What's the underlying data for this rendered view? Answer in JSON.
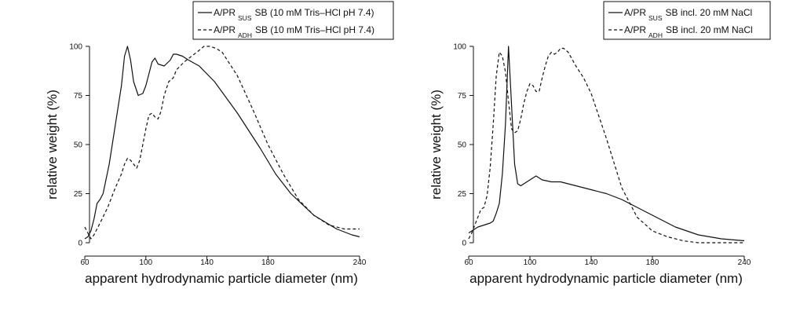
{
  "chart_data": [
    {
      "type": "line",
      "xlabel": "apparent hydrodynamic particle diameter  (nm)",
      "ylabel": "relative weight  (%)",
      "xlim": [
        60,
        240
      ],
      "ylim": [
        0,
        100
      ],
      "xticks": [
        "60",
        "100",
        "140",
        "180",
        "240"
      ],
      "yticks": [
        "0",
        "25",
        "50",
        "75",
        "100"
      ],
      "grid": false,
      "legend_position": "top-right",
      "series": [
        {
          "name": "A/PR SUS SB (10 mM Tris–HCl pH 7.4)",
          "legend_prefix": "A/PR",
          "legend_sub": "SUS",
          "legend_suffix": "SB (10 mM Tris–HCl pH 7.4)",
          "style": "solid",
          "x": [
            60,
            62,
            64,
            66,
            68,
            70,
            72,
            76,
            80,
            84,
            86,
            88,
            90,
            92,
            95,
            98,
            100,
            102,
            104,
            106,
            108,
            112,
            116,
            118,
            120,
            124,
            128,
            135,
            145,
            160,
            175,
            185,
            195,
            210,
            225,
            235,
            240
          ],
          "y": [
            2,
            3,
            6,
            12,
            20,
            22,
            25,
            40,
            60,
            80,
            95,
            100,
            93,
            82,
            75,
            76,
            80,
            86,
            92,
            94,
            91,
            90,
            93,
            96,
            96,
            95,
            93,
            90,
            82,
            66,
            48,
            35,
            25,
            14,
            7,
            4,
            3
          ]
        },
        {
          "name": "A/PR ADH SB (10 mM Tris–HCl pH 7.4)",
          "legend_prefix": "A/PR",
          "legend_sub": "ADH",
          "legend_suffix": "SB (10 mM Tris–HCl pH 7.4)",
          "style": "dashed",
          "x": [
            60,
            62,
            64,
            66,
            70,
            75,
            80,
            84,
            86,
            88,
            90,
            92,
            94,
            96,
            98,
            100,
            102,
            104,
            106,
            108,
            110,
            112,
            115,
            118,
            120,
            125,
            130,
            135,
            138,
            142,
            146,
            150,
            160,
            170,
            180,
            190,
            200,
            210,
            220,
            230,
            240
          ],
          "y": [
            8,
            5,
            2,
            4,
            10,
            18,
            28,
            35,
            40,
            43,
            42,
            40,
            38,
            42,
            50,
            58,
            65,
            66,
            64,
            63,
            67,
            75,
            82,
            84,
            88,
            92,
            95,
            98,
            100,
            100,
            99,
            97,
            85,
            68,
            50,
            35,
            22,
            14,
            9,
            7,
            7
          ]
        }
      ]
    },
    {
      "type": "line",
      "xlabel": "apparent hydrodynamic particle diameter  (nm)",
      "ylabel": "relative weight  (%)",
      "xlim": [
        60,
        240
      ],
      "ylim": [
        0,
        100
      ],
      "xticks": [
        "60",
        "100",
        "140",
        "180",
        "240"
      ],
      "yticks": [
        "0",
        "25",
        "50",
        "75",
        "100"
      ],
      "grid": false,
      "legend_position": "top-right",
      "series": [
        {
          "name": "A/PR SUS SB incl. 20 mM NaCl",
          "legend_prefix": "A/PR",
          "legend_sub": "SUS",
          "legend_suffix": "SB incl. 20 mM NaCl",
          "style": "solid",
          "x": [
            60,
            62,
            64,
            66,
            70,
            74,
            76,
            78,
            80,
            82,
            84,
            86,
            88,
            90,
            92,
            94,
            96,
            98,
            100,
            104,
            108,
            114,
            120,
            130,
            140,
            150,
            160,
            170,
            180,
            195,
            210,
            225,
            240
          ],
          "y": [
            5,
            6,
            7,
            8,
            9,
            10,
            11,
            15,
            20,
            35,
            60,
            100,
            70,
            40,
            30,
            29,
            30,
            31,
            32,
            34,
            32,
            31,
            31,
            29,
            27,
            25,
            22,
            18,
            14,
            8,
            4,
            2,
            1
          ]
        },
        {
          "name": "A/PR ADH SB incl. 20 mM NaCl",
          "legend_prefix": "A/PR",
          "legend_sub": "ADH",
          "legend_suffix": "SB incl. 20 mM NaCl",
          "style": "dashed",
          "x": [
            60,
            62,
            64,
            66,
            68,
            70,
            72,
            74,
            76,
            78,
            80,
            82,
            84,
            86,
            88,
            90,
            92,
            94,
            96,
            98,
            100,
            102,
            104,
            106,
            108,
            110,
            112,
            114,
            116,
            118,
            120,
            122,
            125,
            130,
            135,
            140,
            150,
            160,
            170,
            180,
            190,
            200,
            210,
            220,
            230,
            240
          ],
          "y": [
            2,
            5,
            9,
            13,
            17,
            18,
            24,
            38,
            60,
            85,
            97,
            95,
            87,
            72,
            58,
            56,
            57,
            63,
            71,
            77,
            81,
            80,
            77,
            77,
            84,
            90,
            95,
            97,
            96,
            97,
            99,
            99,
            97,
            90,
            84,
            76,
            53,
            28,
            13,
            6,
            3,
            1,
            0,
            0,
            0,
            0
          ]
        }
      ]
    }
  ]
}
